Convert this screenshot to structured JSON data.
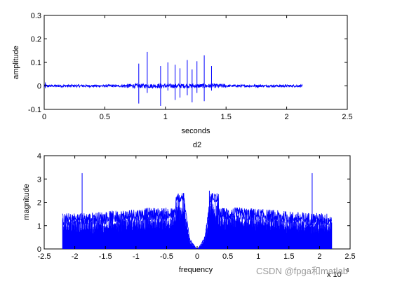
{
  "chart_data": [
    {
      "type": "line",
      "title": "",
      "xlabel": "seconds",
      "ylabel": "amplitude",
      "xlim": [
        0,
        2.5
      ],
      "ylim": [
        -0.1,
        0.3
      ],
      "xticks": [
        "0",
        "0.5",
        "1",
        "1.5",
        "2",
        "2.5"
      ],
      "yticks": [
        "-0.1",
        "0",
        "0.1",
        "0.2",
        "0.3"
      ],
      "grid": false,
      "series": [
        {
          "color": "#0000ff",
          "signal_extent": [
            0,
            2.13
          ],
          "noise_amplitude": 0.005,
          "spikes": [
            {
              "x": 0.78,
              "high": 0.095,
              "low": -0.075
            },
            {
              "x": 0.85,
              "high": 0.145,
              "low": -0.03
            },
            {
              "x": 0.96,
              "high": 0.085,
              "low": -0.085
            },
            {
              "x": 1.02,
              "high": 0.1,
              "low": -0.02
            },
            {
              "x": 1.08,
              "high": 0.09,
              "low": -0.06
            },
            {
              "x": 1.12,
              "high": 0.075,
              "low": -0.05
            },
            {
              "x": 1.18,
              "high": 0.11,
              "low": -0.04
            },
            {
              "x": 1.22,
              "high": 0.07,
              "low": -0.07
            },
            {
              "x": 1.26,
              "high": 0.105,
              "low": -0.03
            },
            {
              "x": 1.32,
              "high": 0.13,
              "low": -0.065
            },
            {
              "x": 1.38,
              "high": 0.085,
              "low": -0.02
            }
          ]
        }
      ]
    },
    {
      "type": "line",
      "title": "d2",
      "xlabel": "frequency",
      "ylabel": "magnitude",
      "xlim": [
        -2.5,
        2.5
      ],
      "ylim": [
        0,
        4
      ],
      "xticks": [
        "-2.5",
        "-2",
        "-1.5",
        "-1",
        "-0.5",
        "0",
        "0.5",
        "1",
        "1.5",
        "2",
        "2.5"
      ],
      "yticks": [
        "0",
        "1",
        "2",
        "3",
        "4"
      ],
      "x_multiplier": "x 10",
      "x_multiplier_exp": "4",
      "grid": false,
      "series": [
        {
          "color": "#0000ff",
          "signal_extent": [
            -2.2,
            2.2
          ],
          "floor": 1.25,
          "notch_center": 0,
          "notch_depth": 0.0,
          "peaks": [
            {
              "x": -1.88,
              "value": 3.25
            },
            {
              "x": 1.88,
              "value": 3.25
            },
            {
              "x": -0.22,
              "value": 2.4
            },
            {
              "x": 0.2,
              "value": 2.5
            }
          ]
        }
      ]
    }
  ],
  "watermark": {
    "text": "CSDN @fpga和matlab"
  }
}
